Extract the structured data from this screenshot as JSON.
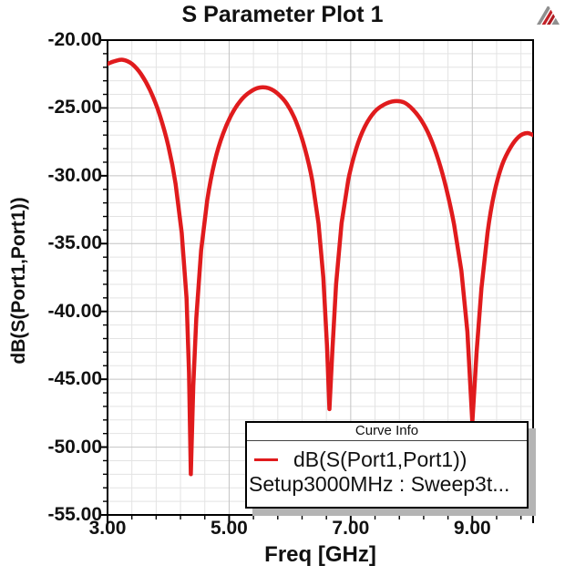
{
  "header": {
    "title": "S Parameter Plot 1",
    "logo": "ansys-logo"
  },
  "axes": {
    "x": {
      "title": "Freq [GHz]",
      "min": 3,
      "max": 10,
      "major_ticks": [
        3,
        5,
        7,
        9
      ],
      "tick_labels": [
        "3.00",
        "5.00",
        "7.00",
        "9.00"
      ],
      "minor_step": 0.4
    },
    "y": {
      "title": "dB(S(Port1,Port1))",
      "min": -55,
      "max": -20,
      "major_ticks": [
        -20,
        -25,
        -30,
        -35,
        -40,
        -45,
        -50,
        -55
      ],
      "tick_labels": [
        "-20.00",
        "-25.00",
        "-30.00",
        "-35.00",
        "-40.00",
        "-45.00",
        "-50.00",
        "-55.00"
      ],
      "minor_step": 1
    }
  },
  "legend": {
    "header": "Curve Info",
    "trace_label": "dB(S(Port1,Port1))",
    "sweep_label": "Setup3000MHz : Sweep3t...",
    "position": "bottom-right"
  },
  "colors": {
    "curve": "#e01b1d",
    "grid_minor": "#e3e3e3",
    "grid_major": "#c4c4c4",
    "axis": "#000000",
    "logo_gray": "#8f8f8f",
    "logo_red": "#c42127",
    "legend_shadow": "#b4b4b4"
  },
  "chart_data": {
    "type": "line",
    "title": "S Parameter Plot 1",
    "xlabel": "Freq [GHz]",
    "ylabel": "dB(S(Port1,Port1))",
    "xlim": [
      3,
      10
    ],
    "ylim": [
      -55,
      -20
    ],
    "grid": true,
    "legend_position": "bottom-right",
    "series": [
      {
        "name": "dB(S(Port1,Port1))",
        "sweep": "Setup3000MHz : Sweep3t...",
        "color": "#e01b1d",
        "points": [
          [
            3.0,
            -21.75
          ],
          [
            3.12,
            -21.55
          ],
          [
            3.25,
            -21.45
          ],
          [
            3.4,
            -21.75
          ],
          [
            3.55,
            -22.5
          ],
          [
            3.7,
            -23.7
          ],
          [
            3.85,
            -25.4
          ],
          [
            4.0,
            -27.8
          ],
          [
            4.12,
            -30.6
          ],
          [
            4.22,
            -34.2
          ],
          [
            4.3,
            -39.0
          ],
          [
            4.34,
            -44.5
          ],
          [
            4.37,
            -52.0
          ],
          [
            4.41,
            -45.5
          ],
          [
            4.46,
            -40.5
          ],
          [
            4.54,
            -35.5
          ],
          [
            4.64,
            -31.8
          ],
          [
            4.76,
            -29.0
          ],
          [
            4.9,
            -26.9
          ],
          [
            5.05,
            -25.4
          ],
          [
            5.2,
            -24.4
          ],
          [
            5.35,
            -23.8
          ],
          [
            5.5,
            -23.5
          ],
          [
            5.65,
            -23.55
          ],
          [
            5.8,
            -23.95
          ],
          [
            5.95,
            -24.7
          ],
          [
            6.1,
            -26.0
          ],
          [
            6.24,
            -27.9
          ],
          [
            6.37,
            -30.4
          ],
          [
            6.47,
            -33.5
          ],
          [
            6.55,
            -37.5
          ],
          [
            6.61,
            -42.5
          ],
          [
            6.65,
            -47.2
          ],
          [
            6.7,
            -42.8
          ],
          [
            6.76,
            -38.0
          ],
          [
            6.85,
            -33.5
          ],
          [
            6.96,
            -30.3
          ],
          [
            7.09,
            -28.0
          ],
          [
            7.23,
            -26.4
          ],
          [
            7.39,
            -25.3
          ],
          [
            7.55,
            -24.75
          ],
          [
            7.72,
            -24.5
          ],
          [
            7.88,
            -24.6
          ],
          [
            8.02,
            -25.1
          ],
          [
            8.16,
            -25.9
          ],
          [
            8.3,
            -27.1
          ],
          [
            8.44,
            -28.8
          ],
          [
            8.57,
            -30.9
          ],
          [
            8.7,
            -33.6
          ],
          [
            8.82,
            -37.0
          ],
          [
            8.92,
            -41.5
          ],
          [
            9.0,
            -48.2
          ],
          [
            9.07,
            -43.0
          ],
          [
            9.15,
            -38.3
          ],
          [
            9.25,
            -34.2
          ],
          [
            9.36,
            -31.3
          ],
          [
            9.49,
            -29.2
          ],
          [
            9.63,
            -27.9
          ],
          [
            9.77,
            -27.1
          ],
          [
            9.9,
            -26.85
          ],
          [
            10.0,
            -27.0
          ]
        ]
      }
    ]
  }
}
